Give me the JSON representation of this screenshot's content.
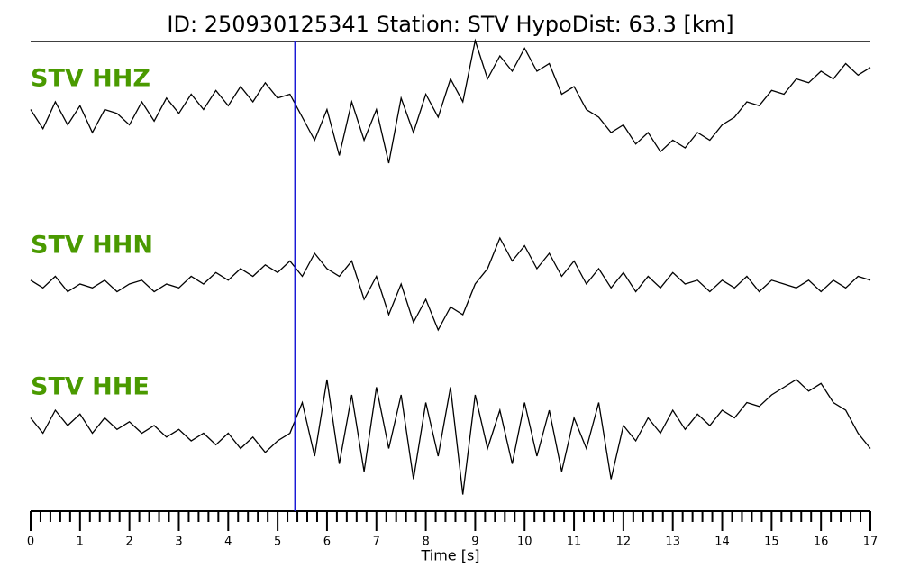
{
  "chart_data": {
    "type": "line",
    "title": "ID: 250930125341   Station: STV   HypoDist:    63.3 [km]",
    "xlabel": "Time [s]",
    "xlim": [
      0,
      17
    ],
    "xticks": [
      0,
      1,
      2,
      3,
      4,
      5,
      6,
      7,
      8,
      9,
      10,
      11,
      12,
      13,
      14,
      15,
      16,
      17
    ],
    "label_color": "#4a9a00",
    "picks": [
      {
        "x": 5.35,
        "color": "#1a1ad6"
      }
    ],
    "x": [
      0,
      0.25,
      0.5,
      0.75,
      1,
      1.25,
      1.5,
      1.75,
      2,
      2.25,
      2.5,
      2.75,
      3,
      3.25,
      3.5,
      3.75,
      4,
      4.25,
      4.5,
      4.75,
      5,
      5.25,
      5.5,
      5.75,
      6,
      6.25,
      6.5,
      6.75,
      7,
      7.25,
      7.5,
      7.75,
      8,
      8.25,
      8.5,
      8.75,
      9,
      9.25,
      9.5,
      9.75,
      10,
      10.25,
      10.5,
      10.75,
      11,
      11.25,
      11.5,
      11.75,
      12,
      12.25,
      12.5,
      12.75,
      13,
      13.25,
      13.5,
      13.75,
      14,
      14.25,
      14.5,
      14.75,
      15,
      15.25,
      15.5,
      15.75,
      16,
      16.25,
      16.5,
      16.75,
      17
    ],
    "series": [
      {
        "name": "STV HHZ",
        "color": "#000000",
        "values": [
          0.1,
          -0.15,
          0.2,
          -0.1,
          0.15,
          -0.2,
          0.1,
          0.05,
          -0.1,
          0.2,
          -0.05,
          0.25,
          0.05,
          0.3,
          0.1,
          0.35,
          0.15,
          0.4,
          0.2,
          0.45,
          0.25,
          0.3,
          0.0,
          -0.3,
          0.1,
          -0.5,
          0.2,
          -0.3,
          0.1,
          -0.6,
          0.25,
          -0.2,
          0.3,
          0.0,
          0.5,
          0.2,
          1.0,
          0.5,
          0.8,
          0.6,
          0.9,
          0.6,
          0.7,
          0.3,
          0.4,
          0.1,
          0.0,
          -0.2,
          -0.1,
          -0.35,
          -0.2,
          -0.45,
          -0.3,
          -0.4,
          -0.2,
          -0.3,
          -0.1,
          0.0,
          0.2,
          0.15,
          0.35,
          0.3,
          0.5,
          0.45,
          0.6,
          0.5,
          0.7,
          0.55,
          0.65
        ]
      },
      {
        "name": "STV HHN",
        "color": "#000000",
        "values": [
          0.05,
          -0.05,
          0.1,
          -0.1,
          0.0,
          -0.05,
          0.05,
          -0.1,
          0.0,
          0.05,
          -0.1,
          0.0,
          -0.05,
          0.1,
          0.0,
          0.15,
          0.05,
          0.2,
          0.1,
          0.25,
          0.15,
          0.3,
          0.1,
          0.4,
          0.2,
          0.1,
          0.3,
          -0.2,
          0.1,
          -0.4,
          0.0,
          -0.5,
          -0.2,
          -0.6,
          -0.3,
          -0.4,
          0.0,
          0.2,
          0.6,
          0.3,
          0.5,
          0.2,
          0.4,
          0.1,
          0.3,
          0.0,
          0.2,
          -0.05,
          0.15,
          -0.1,
          0.1,
          -0.05,
          0.15,
          0.0,
          0.05,
          -0.1,
          0.05,
          -0.05,
          0.1,
          -0.1,
          0.05,
          0.0,
          -0.05,
          0.05,
          -0.1,
          0.05,
          -0.05,
          0.1,
          0.05
        ]
      },
      {
        "name": "STV HHE",
        "color": "#000000",
        "values": [
          0.1,
          -0.1,
          0.2,
          0.0,
          0.15,
          -0.1,
          0.1,
          -0.05,
          0.05,
          -0.1,
          0.0,
          -0.15,
          -0.05,
          -0.2,
          -0.1,
          -0.25,
          -0.1,
          -0.3,
          -0.15,
          -0.35,
          -0.2,
          -0.1,
          0.3,
          -0.4,
          0.6,
          -0.5,
          0.4,
          -0.6,
          0.5,
          -0.3,
          0.4,
          -0.7,
          0.3,
          -0.4,
          0.5,
          -0.9,
          0.4,
          -0.3,
          0.2,
          -0.5,
          0.3,
          -0.4,
          0.2,
          -0.6,
          0.1,
          -0.3,
          0.3,
          -0.7,
          0.0,
          -0.2,
          0.1,
          -0.1,
          0.2,
          -0.05,
          0.15,
          0.0,
          0.2,
          0.1,
          0.3,
          0.25,
          0.4,
          0.5,
          0.6,
          0.45,
          0.55,
          0.3,
          0.2,
          -0.1,
          -0.3
        ]
      }
    ]
  }
}
